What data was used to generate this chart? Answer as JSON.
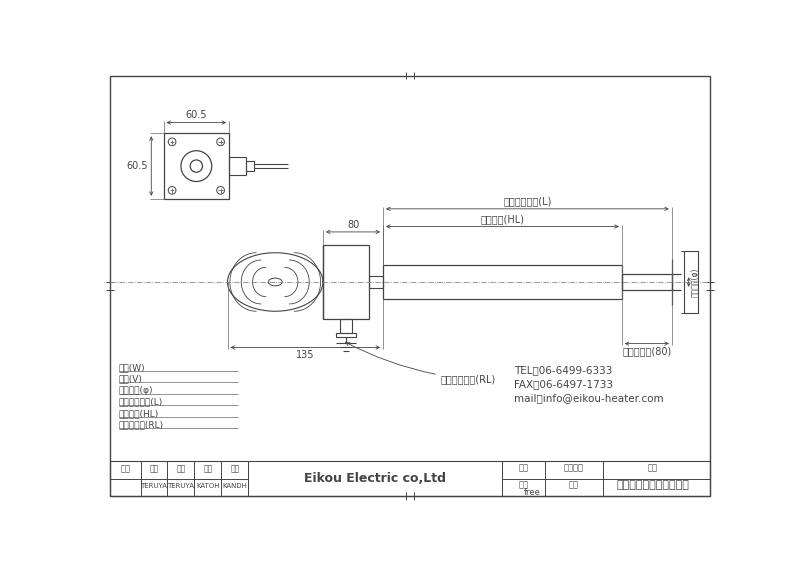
{
  "line_color": "#444444",
  "company": "Eikou Electric co,Ltd",
  "tel": "TEL：06-6499-6333",
  "fax": "FAX：06-6497-1733",
  "mail": "mail：info@eikou-heater.com",
  "revision_label": "改訂",
  "cols": [
    "承認",
    "検閲",
    "設計",
    "制図"
  ],
  "col_names": [
    "TERUYA",
    "TERUYA",
    "KATOH",
    "KANDH"
  ],
  "date_label": "日付",
  "scale_label": "尺度",
  "scale_value": "free",
  "mgmt_label": "管理番号",
  "drawing_label": "図番",
  "name_label": "名称",
  "name_value": "取っ手型ボルトヒーター",
  "spec_labels": [
    "容量(W)",
    "電圧(V)",
    "パイプ径(φ)",
    "ヒーター長さ(L)",
    "発熱長さ(HL)",
    "リード線長(RL)"
  ],
  "dim_60_5": "60.5",
  "dim_80": "80",
  "dim_135": "135",
  "dim_non_heat": "非発熱長さ(80)",
  "dim_heat": "発熱長さ(HL)",
  "dim_heater": "ヒーター長さ(L)",
  "dim_lead": "リード線長さ(RL)",
  "pipe_dia": "パイプ径(φ)"
}
